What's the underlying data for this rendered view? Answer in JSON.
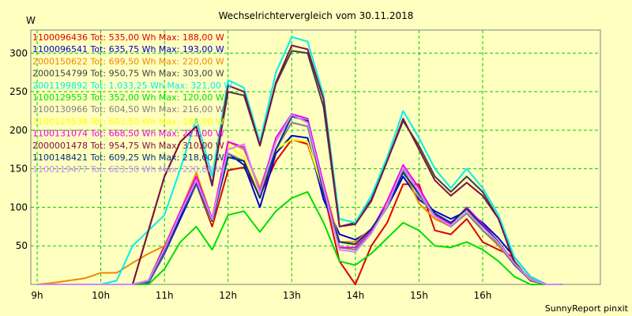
{
  "chart_data": {
    "type": "line",
    "title": "Wechselrichtervergleich vom 30.11.2018",
    "ylabel": "W",
    "xlabel": "",
    "x_ticks": [
      "9h",
      "10h",
      "11h",
      "12h",
      "13h",
      "14h",
      "15h",
      "16h"
    ],
    "y_ticks": [
      50,
      100,
      150,
      200,
      250,
      300
    ],
    "ylim": [
      0,
      330
    ],
    "xlim": [
      8.9,
      17.85
    ],
    "grid": true,
    "legend_position": "top-left",
    "credit": "SunnyReport pinxit",
    "x": [
      9.0,
      9.25,
      9.5,
      9.75,
      10.0,
      10.25,
      10.5,
      10.75,
      11.0,
      11.25,
      11.5,
      11.75,
      12.0,
      12.25,
      12.5,
      12.75,
      13.0,
      13.25,
      13.5,
      13.75,
      14.0,
      14.25,
      14.5,
      14.75,
      15.0,
      15.25,
      15.5,
      15.75,
      16.0,
      16.25,
      16.5,
      16.75,
      17.0,
      17.25
    ],
    "series": [
      {
        "name": "1100096436 Tot: 535,00 Wh Max: 188,00 W",
        "color": "#dd0000",
        "values": [
          0,
          0,
          0,
          0,
          0,
          0,
          0,
          5,
          50,
          90,
          130,
          75,
          148,
          152,
          115,
          160,
          188,
          182,
          120,
          30,
          0,
          50,
          80,
          130,
          130,
          70,
          65,
          85,
          55,
          45,
          35,
          10,
          0,
          0
        ]
      },
      {
        "name": "1100096541 Tot: 635,75 Wh Max: 193,00 W",
        "color": "#0000cc",
        "values": [
          0,
          0,
          0,
          0,
          0,
          0,
          0,
          2,
          40,
          85,
          130,
          80,
          170,
          155,
          100,
          170,
          193,
          190,
          110,
          65,
          58,
          70,
          100,
          140,
          110,
          95,
          85,
          95,
          80,
          60,
          35,
          10,
          0,
          0
        ]
      },
      {
        "name": "2000150622 Tot: 699,50 Wh Max: 220,00 W",
        "color": "#ee8800",
        "values": [
          0,
          2,
          5,
          8,
          15,
          15,
          28,
          40,
          50,
          95,
          145,
          85,
          185,
          175,
          125,
          185,
          220,
          210,
          130,
          55,
          55,
          72,
          102,
          150,
          105,
          85,
          75,
          95,
          70,
          50,
          25,
          8,
          0,
          0
        ]
      },
      {
        "name": "2000154799 Tot: 950,75 Wh Max: 303,00 W",
        "color": "#404040",
        "values": [
          0,
          0,
          0,
          0,
          0,
          0,
          0,
          70,
          140,
          185,
          205,
          130,
          250,
          245,
          180,
          260,
          303,
          300,
          230,
          75,
          80,
          110,
          160,
          212,
          180,
          140,
          120,
          140,
          120,
          85,
          30,
          5,
          0,
          0
        ]
      },
      {
        "name": "2001199892 Tot: 1.033,25 Wh Max: 321,00 W",
        "color": "#00eeee",
        "values": [
          0,
          0,
          0,
          0,
          0,
          5,
          50,
          70,
          90,
          150,
          215,
          140,
          265,
          255,
          185,
          275,
          321,
          315,
          245,
          85,
          80,
          115,
          165,
          225,
          190,
          150,
          125,
          150,
          125,
          90,
          35,
          10,
          0,
          0
        ]
      },
      {
        "name": "1100129553 Tot: 352,00 Wh Max: 120,00 W",
        "color": "#00dd00",
        "values": [
          0,
          0,
          0,
          0,
          0,
          0,
          0,
          0,
          20,
          55,
          75,
          45,
          90,
          95,
          68,
          95,
          112,
          120,
          80,
          30,
          25,
          40,
          60,
          80,
          70,
          50,
          48,
          55,
          45,
          30,
          10,
          0,
          0,
          0
        ]
      },
      {
        "name": "1100130966 Tot: 604,50 Wh Max: 216,00 W",
        "color": "#808080",
        "values": [
          0,
          0,
          0,
          0,
          0,
          0,
          0,
          3,
          42,
          90,
          130,
          80,
          170,
          160,
          115,
          175,
          210,
          205,
          120,
          48,
          45,
          68,
          100,
          148,
          115,
          88,
          75,
          92,
          70,
          52,
          25,
          5,
          0,
          0
        ]
      },
      {
        "name": "1100129538 Tot: 603,50 Wh Max: 188,00 W",
        "color": "#ffff00",
        "values": [
          0,
          0,
          0,
          0,
          0,
          0,
          0,
          4,
          45,
          90,
          135,
          80,
          180,
          165,
          115,
          175,
          188,
          185,
          120,
          55,
          50,
          70,
          105,
          145,
          120,
          90,
          78,
          95,
          75,
          55,
          28,
          6,
          0,
          0
        ]
      },
      {
        "name": "1100131074 Tot: 668,50 Wh Max: 221,00 W",
        "color": "#ee00ee",
        "values": [
          0,
          0,
          0,
          0,
          0,
          0,
          0,
          5,
          48,
          95,
          140,
          85,
          185,
          178,
          120,
          190,
          221,
          215,
          130,
          48,
          48,
          70,
          108,
          155,
          125,
          90,
          78,
          100,
          78,
          55,
          28,
          6,
          0,
          0
        ]
      },
      {
        "name": "2000001478 Tot: 954,75 Wh Max: 310,00 W",
        "color": "#801040",
        "values": [
          0,
          0,
          0,
          0,
          0,
          0,
          0,
          70,
          140,
          185,
          205,
          128,
          258,
          250,
          180,
          262,
          310,
          305,
          240,
          75,
          78,
          108,
          160,
          215,
          175,
          135,
          115,
          132,
          115,
          85,
          28,
          5,
          0,
          0
        ]
      },
      {
        "name": "1100148421 Tot: 609,25 Wh Max: 218,00 W",
        "color": "#003380",
        "values": [
          0,
          0,
          0,
          0,
          0,
          0,
          0,
          4,
          44,
          90,
          132,
          82,
          165,
          160,
          112,
          175,
          218,
          212,
          118,
          55,
          52,
          72,
          102,
          145,
          118,
          92,
          80,
          98,
          76,
          55,
          26,
          6,
          0,
          0
        ]
      },
      {
        "name": "1100119477 Tot: 623,50 Wh Max: 220,00 W",
        "color": "#cc88ff",
        "values": [
          0,
          0,
          0,
          0,
          0,
          0,
          0,
          5,
          46,
          92,
          135,
          84,
          175,
          182,
          118,
          185,
          220,
          210,
          125,
          45,
          42,
          66,
          102,
          152,
          120,
          88,
          76,
          94,
          74,
          54,
          27,
          6,
          0,
          0
        ]
      }
    ]
  }
}
